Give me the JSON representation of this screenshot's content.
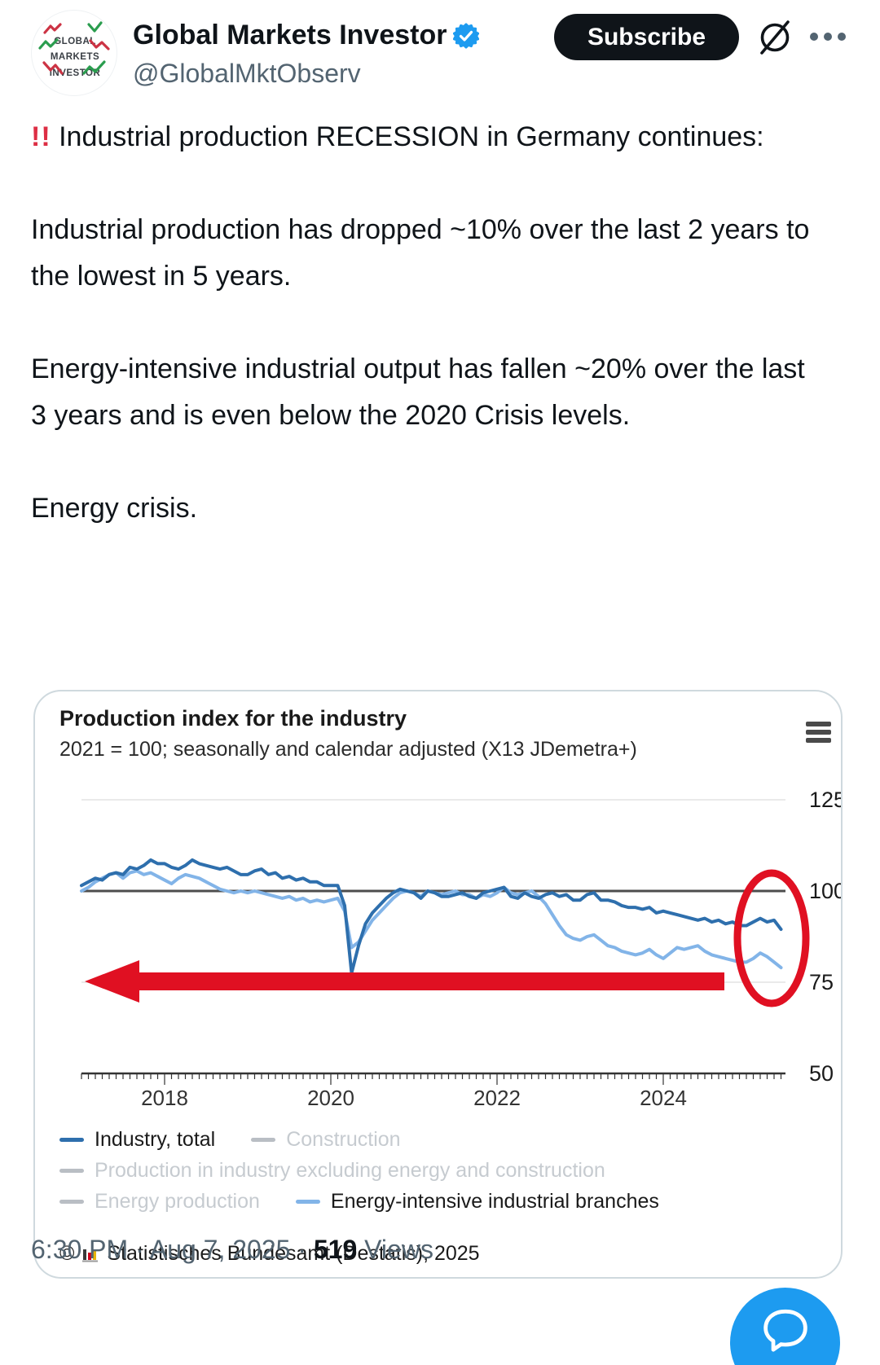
{
  "header": {
    "display_name": "Global Markets Investor",
    "handle": "@GlobalMktObserv",
    "subscribe_label": "Subscribe",
    "avatar_lines": [
      "GLOBAL",
      "MARKETS",
      "INVESTOR"
    ],
    "icons": {
      "verified_badge_color": "#1d9bf0",
      "grok_icon": "slashed-circle",
      "more_icon": "three-dots"
    }
  },
  "tweet": {
    "emoji": "!!",
    "paragraphs": [
      "Industrial production RECESSION in Germany continues:",
      "Industrial production has dropped ~10% over the last 2 years to the lowest in 5 years.",
      "Energy-intensive industrial output has fallen ~20% over the last 3 years and is even below the 2020 Crisis levels.",
      "Energy crisis."
    ]
  },
  "chart_card": {
    "title": "Production index for the industry",
    "subtitle": "2021 = 100; seasonally and calendar adjusted (X13 JDemetra+)",
    "menu_icon": "hamburger",
    "source_prefix": "©",
    "source_icon": "destatis-bars",
    "source_text": "Statistisches Bundesamt (Destatis), 2025"
  },
  "chart_data": {
    "type": "line",
    "title": "Production index for the industry",
    "subtitle": "2021 = 100; seasonally and calendar adjusted (X13 JDemetra+)",
    "x_unit": "monthly, Jan 2017 - Jun 2025",
    "x_tick_labels": [
      "2018",
      "2020",
      "2022",
      "2024"
    ],
    "x_tick_months": [
      12,
      36,
      60,
      84
    ],
    "y_ticks": [
      125,
      100,
      75,
      50
    ],
    "ylim": [
      50,
      130
    ],
    "baseline_value": 100,
    "grid": "horizontal-only",
    "legend_position": "bottom",
    "series": [
      {
        "name": "Industry, total",
        "color": "#2e6fad",
        "active": true,
        "values": [
          101.5,
          102.5,
          103.5,
          103,
          104.5,
          105,
          104.5,
          106.5,
          106,
          107,
          108.5,
          107.5,
          107.5,
          106.5,
          106,
          107,
          108.5,
          107.5,
          107,
          106.5,
          106,
          106.5,
          105.5,
          104.5,
          104.5,
          105.5,
          106,
          104.5,
          105,
          103.5,
          104,
          103,
          103.5,
          102.5,
          102.5,
          101.5,
          101.5,
          101.5,
          96,
          77.5,
          85,
          91,
          94,
          96,
          98,
          99.5,
          100.5,
          100,
          99.5,
          98,
          100,
          99.5,
          98.5,
          98.5,
          99,
          99.5,
          98.5,
          98,
          99.5,
          100,
          100.5,
          101,
          98.5,
          98,
          99.5,
          98.5,
          98,
          99,
          99.5,
          98.5,
          99,
          97.5,
          97.5,
          99,
          99.5,
          97.5,
          97.5,
          97,
          96,
          95.5,
          95.5,
          95,
          95.5,
          94,
          94.5,
          94,
          93.5,
          93,
          92.5,
          92,
          92.5,
          91.5,
          92,
          91,
          91.5,
          90.5,
          90.5,
          91.5,
          92.5,
          91.5,
          92,
          89.5
        ]
      },
      {
        "name": "Construction",
        "color": "#b9bec4",
        "active": false,
        "values": []
      },
      {
        "name": "Production in industry excluding energy and construction",
        "color": "#b9bec4",
        "active": false,
        "values": []
      },
      {
        "name": "Energy production",
        "color": "#b9bec4",
        "active": false,
        "values": []
      },
      {
        "name": "Energy-intensive industrial branches",
        "color": "#82b4e8",
        "active": true,
        "values": [
          100,
          101,
          102.5,
          103.5,
          104.5,
          105,
          103.5,
          105,
          105.5,
          104.5,
          105,
          104,
          103,
          102,
          103.5,
          104.5,
          104,
          103.5,
          102.5,
          101.5,
          100.5,
          100,
          99.5,
          100,
          99.5,
          100,
          99.5,
          99,
          98.5,
          98,
          98.5,
          97.5,
          98,
          97,
          97.5,
          97,
          97.5,
          98,
          94.5,
          84.5,
          86,
          89,
          92,
          94,
          96,
          98,
          99.5,
          100,
          99.5,
          98.5,
          100,
          99.5,
          99,
          99.5,
          100,
          99,
          99,
          98,
          99,
          98.5,
          99.5,
          101,
          99.5,
          99,
          99.5,
          100,
          98.5,
          96.5,
          93.5,
          90.5,
          88,
          87,
          86.5,
          87.5,
          88,
          86.5,
          85,
          84.5,
          83.5,
          83,
          82.5,
          83,
          84,
          82.5,
          81.5,
          83,
          84.5,
          84,
          84.5,
          85,
          83.5,
          82.5,
          82,
          81.5,
          81,
          80.5,
          80.5,
          81.5,
          83,
          82,
          80.5,
          79
        ]
      }
    ],
    "annotations": {
      "color": "#e01022",
      "red_arrow": {
        "shape": "horizontal-arrow-left",
        "at_value": 76
      },
      "red_ellipse": {
        "shape": "ellipse",
        "highlights": "latest 2025 values of both plotted lines"
      }
    }
  },
  "footer": {
    "time_date": "6:30 PM · Aug 7, 2025 · ",
    "views_count": "519",
    "views_label": " Views"
  }
}
